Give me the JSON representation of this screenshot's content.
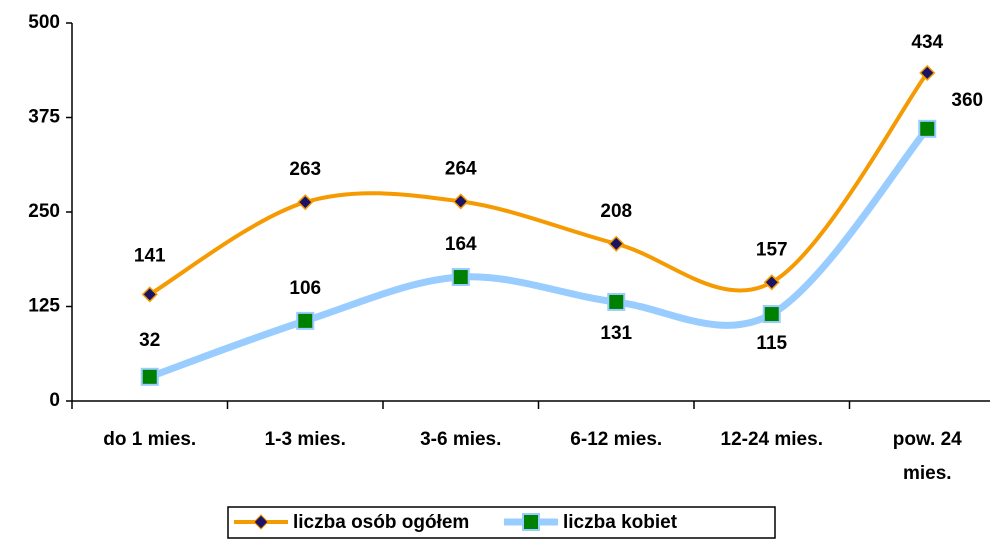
{
  "chart_data": {
    "type": "line",
    "categories": [
      "do 1 mies.",
      "1-3 mies.",
      "3-6 mies.",
      "6-12 mies.",
      "12-24 mies.",
      "pow. 24 mies."
    ],
    "series": [
      {
        "name": "liczba osób ogółem",
        "color": "#f59a00",
        "marker_color": "#1b1464",
        "values": [
          141,
          263,
          264,
          208,
          157,
          434
        ]
      },
      {
        "name": "liczba kobiet",
        "color": "#99ccff",
        "marker_color": "#008000",
        "values": [
          32,
          106,
          164,
          131,
          115,
          360
        ]
      }
    ],
    "ylim": [
      0,
      500
    ],
    "yticks": [
      0,
      125,
      250,
      375,
      500
    ],
    "grid": false,
    "smooth": true,
    "legend": "bottom"
  }
}
